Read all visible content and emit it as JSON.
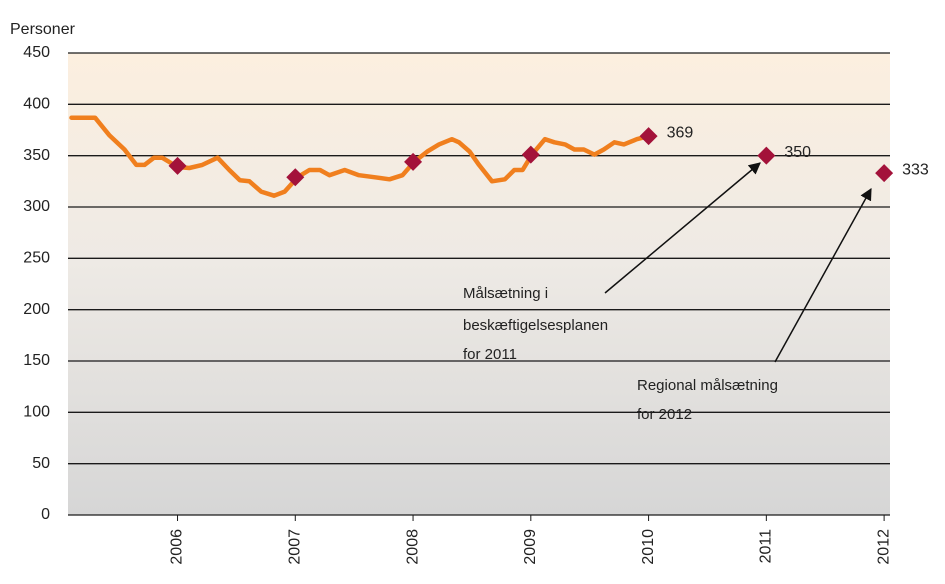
{
  "chart_data": {
    "type": "line",
    "ylabel": "Personer",
    "xlim": [
      2005.07,
      2012.05
    ],
    "ylim": [
      0,
      450
    ],
    "yticks": [
      0,
      50,
      100,
      150,
      200,
      250,
      300,
      350,
      400,
      450
    ],
    "xticks": [
      2006,
      2007,
      2008,
      2009,
      2010,
      2011,
      2012
    ],
    "grid": true,
    "series": [
      {
        "color": "#f07f1e",
        "x": [
          2005.1,
          2005.3,
          2005.42,
          2005.55,
          2005.65,
          2005.72,
          2005.8,
          2005.87,
          2006.0,
          2006.1,
          2006.21,
          2006.34,
          2006.44,
          2006.53,
          2006.61,
          2006.71,
          2006.82,
          2006.91,
          2007.02,
          2007.12,
          2007.21,
          2007.29,
          2007.42,
          2007.54,
          2007.67,
          2007.8,
          2007.91,
          2008.01,
          2008.12,
          2008.22,
          2008.33,
          2008.39,
          2008.48,
          2008.56,
          2008.67,
          2008.78,
          2008.86,
          2008.93,
          2009.01,
          2009.12,
          2009.2,
          2009.29,
          2009.37,
          2009.45,
          2009.54,
          2009.62,
          2009.71,
          2009.79,
          2009.9,
          2010.0
        ],
        "values": [
          387,
          387,
          370,
          356,
          341,
          341,
          348,
          348,
          339,
          338,
          341,
          348,
          336,
          326,
          325,
          315,
          311,
          315,
          329,
          336,
          336,
          331,
          336,
          331,
          329,
          327,
          331,
          344,
          354,
          361,
          366,
          363,
          354,
          341,
          325,
          327,
          336,
          336,
          351,
          366,
          363,
          361,
          356,
          356,
          351,
          356,
          363,
          361,
          366,
          369
        ]
      },
      {
        "color": "#a3123a",
        "marker": "diamond",
        "x": [
          2006,
          2007,
          2008,
          2009,
          2010,
          2011,
          2012
        ],
        "values": [
          340,
          329,
          344,
          351,
          369,
          350,
          333
        ],
        "value_labels": [
          null,
          null,
          null,
          null,
          "369",
          "350",
          "333"
        ]
      }
    ],
    "annotations": [
      {
        "lines": [
          "Målsætning i",
          "beskæftigelsesplanen",
          "for 2011"
        ]
      },
      {
        "lines": [
          "Regional målsætning",
          "for 2012"
        ]
      }
    ]
  }
}
